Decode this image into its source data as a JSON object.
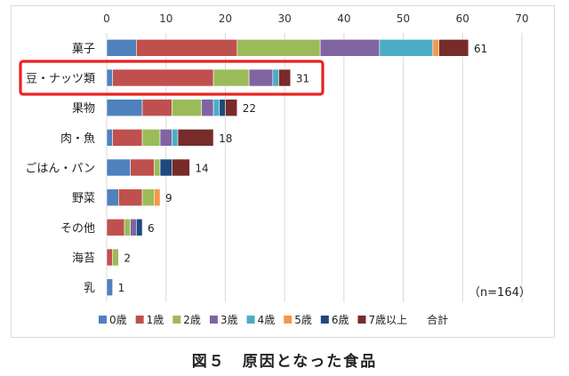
{
  "caption": "図５　原因となった食品",
  "chart_data": {
    "type": "bar",
    "orientation": "horizontal",
    "stacked": true,
    "categories": [
      "菓子",
      "豆・ナッツ類",
      "果物",
      "肉・魚",
      "ごはん・パン",
      "野菜",
      "その他",
      "海苔",
      "乳"
    ],
    "x_ticks": [
      0,
      10,
      20,
      30,
      40,
      50,
      60,
      70
    ],
    "xlim": [
      0,
      70
    ],
    "grid": true,
    "legend_position": "bottom",
    "series": [
      {
        "name": "0歳",
        "color": "#4f81bd",
        "values": [
          5,
          1,
          6,
          1,
          4,
          2,
          0,
          0,
          1
        ]
      },
      {
        "name": "1歳",
        "color": "#c0504d",
        "values": [
          17,
          17,
          5,
          5,
          4,
          4,
          3,
          1,
          0
        ]
      },
      {
        "name": "2歳",
        "color": "#9bbb59",
        "values": [
          14,
          6,
          5,
          3,
          1,
          2,
          1,
          1,
          0
        ]
      },
      {
        "name": "3歳",
        "color": "#8064a2",
        "values": [
          10,
          4,
          2,
          2,
          0,
          0,
          1,
          0,
          0
        ]
      },
      {
        "name": "4歳",
        "color": "#4bacc6",
        "values": [
          9,
          1,
          1,
          1,
          0,
          0,
          0,
          0,
          0
        ]
      },
      {
        "name": "5歳",
        "color": "#f79646",
        "values": [
          1,
          0,
          0,
          0,
          0,
          1,
          0,
          0,
          0
        ]
      },
      {
        "name": "6歳",
        "color": "#1f497d",
        "values": [
          0,
          0,
          1,
          0,
          2,
          0,
          1,
          0,
          0
        ]
      },
      {
        "name": "7歳以上",
        "color": "#772c2a",
        "values": [
          5,
          2,
          2,
          6,
          3,
          0,
          0,
          0,
          0
        ]
      }
    ],
    "totals": [
      61,
      31,
      22,
      18,
      14,
      9,
      6,
      2,
      1
    ],
    "legend_extra": "合計",
    "annotation": "（n=164）",
    "highlight_category": "豆・ナッツ類",
    "highlight_color": "#e8231f"
  }
}
